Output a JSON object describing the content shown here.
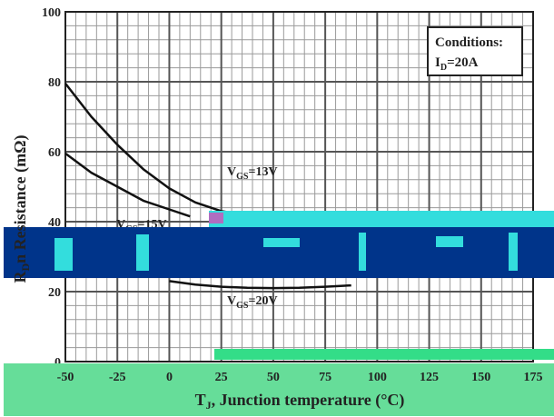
{
  "chart_data": {
    "type": "line",
    "xlabel": "T",
    "xlabel_sub": "J",
    "xlabel_rest": ", Junction temperature (°C)",
    "ylabel": "R",
    "ylabel_sub": "D",
    "ylabel_rest": "n Resistance (mΩ)",
    "xlim": [
      -50,
      175
    ],
    "ylim": [
      0,
      100
    ],
    "x_ticks": [
      -50,
      -25,
      0,
      25,
      50,
      75,
      100,
      125,
      150,
      175
    ],
    "y_ticks": [
      0,
      20,
      40,
      60,
      80,
      100
    ],
    "grid": true,
    "conditions": {
      "title": "Conditions:",
      "line1": "I",
      "line1_sub": "D",
      "line1_rest": "=20A"
    },
    "series": [
      {
        "name": "V",
        "name_sub": "GS",
        "name_rest": "=13V",
        "x": [
          -50,
          -37.5,
          -25,
          -12.5,
          0,
          12.5,
          25,
          37.5,
          50
        ],
        "y": [
          79.5,
          70,
          62,
          55,
          49.5,
          45.5,
          43,
          41.8,
          41.5
        ]
      },
      {
        "name": "V",
        "name_sub": "GS",
        "name_rest": "=15V",
        "x": [
          -50,
          -37.5,
          -25,
          -12.5,
          0,
          10
        ],
        "y": [
          59.5,
          54,
          50,
          46,
          43.5,
          41.5
        ]
      },
      {
        "name": "V",
        "name_sub": "GS",
        "name_rest": "=20V",
        "x": [
          0,
          12.5,
          25,
          37.5,
          50,
          62.5,
          75,
          87.5
        ],
        "y": [
          23,
          22,
          21.4,
          21.1,
          21,
          21.1,
          21.4,
          21.8
        ]
      }
    ]
  }
}
